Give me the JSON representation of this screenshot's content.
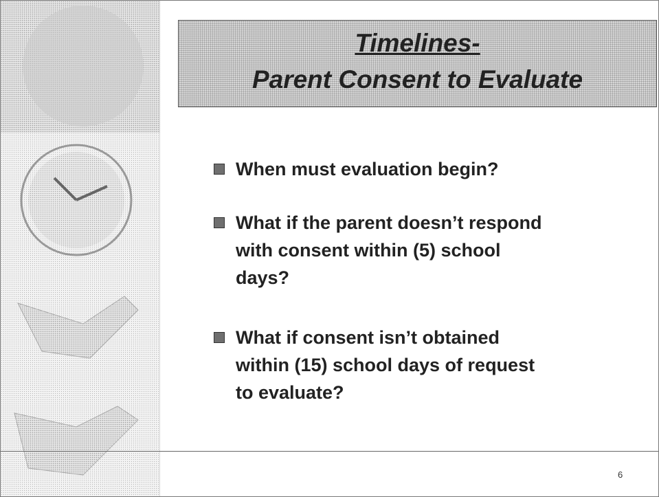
{
  "slide": {
    "title": [
      "Timelines-",
      "Parent Consent to Evaluate"
    ],
    "bullets": [
      [
        "When must evaluation begin?"
      ],
      [
        "What if the parent doesn’t respond",
        "with consent within (5) school",
        "days?"
      ],
      [
        "What if consent isn’t obtained",
        "within (15) school days of request",
        "to evaluate?"
      ]
    ],
    "page_number": "6"
  }
}
